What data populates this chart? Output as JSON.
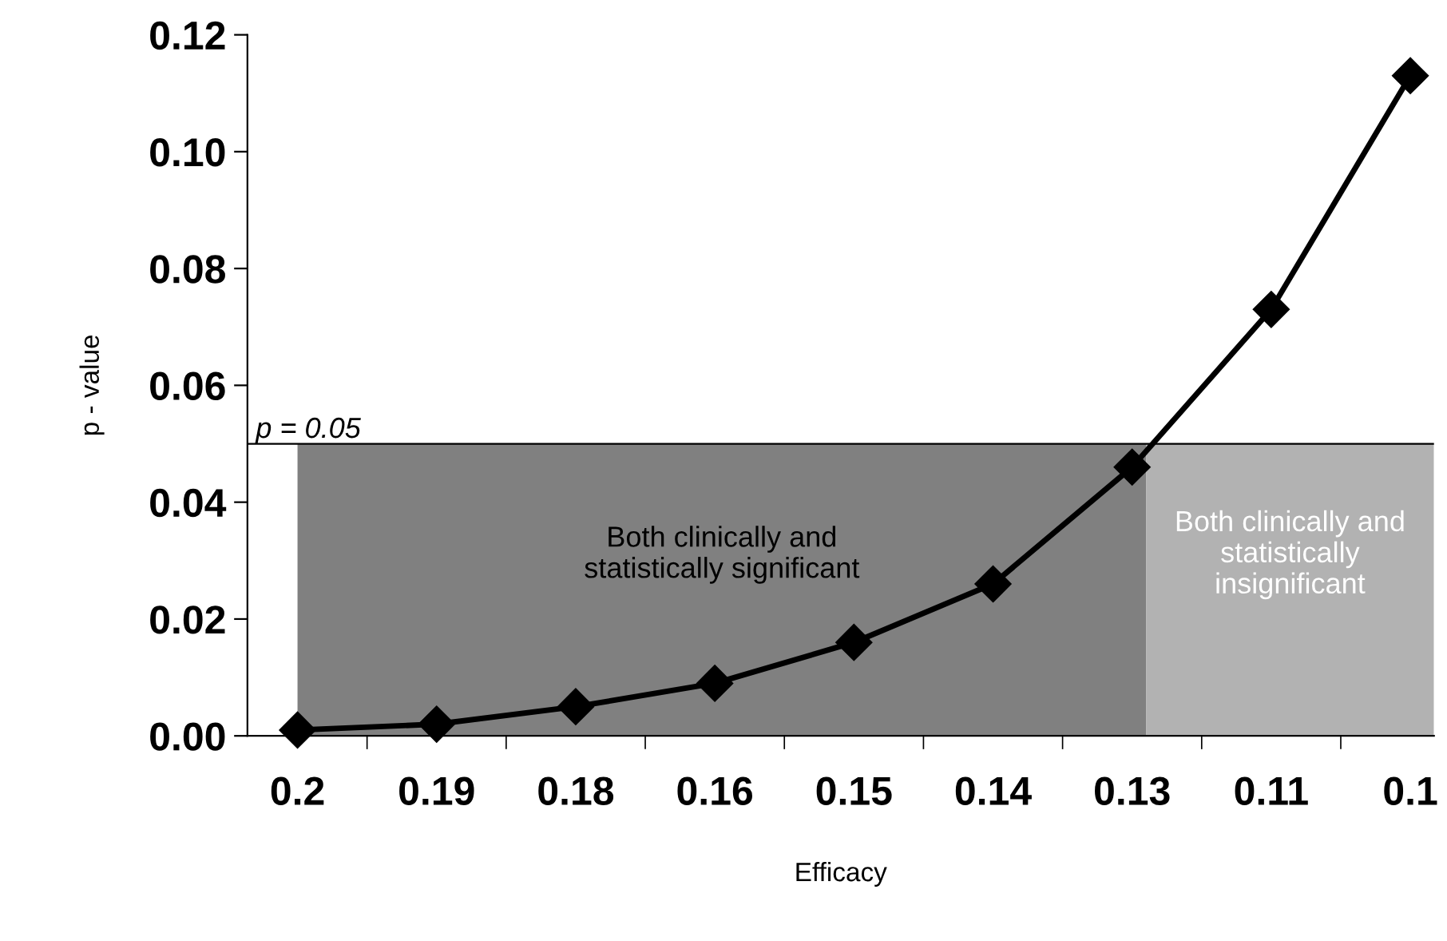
{
  "chart_data": {
    "type": "line",
    "xlabel": "Efficacy",
    "ylabel": "p - value",
    "categories": [
      "0.2",
      "0.19",
      "0.18",
      "0.16",
      "0.15",
      "0.14",
      "0.13",
      "0.11",
      "0.1"
    ],
    "series": [
      {
        "color": "#000000",
        "values": [
          0.001,
          0.002,
          0.005,
          0.009,
          0.016,
          0.026,
          0.046,
          0.073,
          0.113
        ]
      }
    ],
    "marker": "diamond",
    "line_style": "solid",
    "ylim": [
      0,
      0.12
    ],
    "yticks": [
      {
        "value": 0,
        "label": "0.00"
      },
      {
        "value": 0.02,
        "label": "0.02"
      },
      {
        "value": 0.04,
        "label": "0.04"
      },
      {
        "value": 0.06,
        "label": "0.06"
      },
      {
        "value": 0.08,
        "label": "0.08"
      },
      {
        "value": 0.1,
        "label": "0.10"
      },
      {
        "value": 0.12,
        "label": "0.12"
      }
    ],
    "ref_lines": [
      {
        "axis": "y",
        "value": 0.05,
        "label": "p = 0.05",
        "color": "#000000"
      }
    ],
    "bands": [
      {
        "axis": "x",
        "from": "0.2",
        "to": "0.13",
        "label": "Both clinically and\nstatistically significant",
        "color": "#808080"
      },
      {
        "axis": "x",
        "from": "0.13",
        "to": "0.1",
        "label": "Both clinically and\nstatistically\ninsignificant",
        "color": "#b2b2b2"
      }
    ],
    "grid": false,
    "legend": false
  }
}
